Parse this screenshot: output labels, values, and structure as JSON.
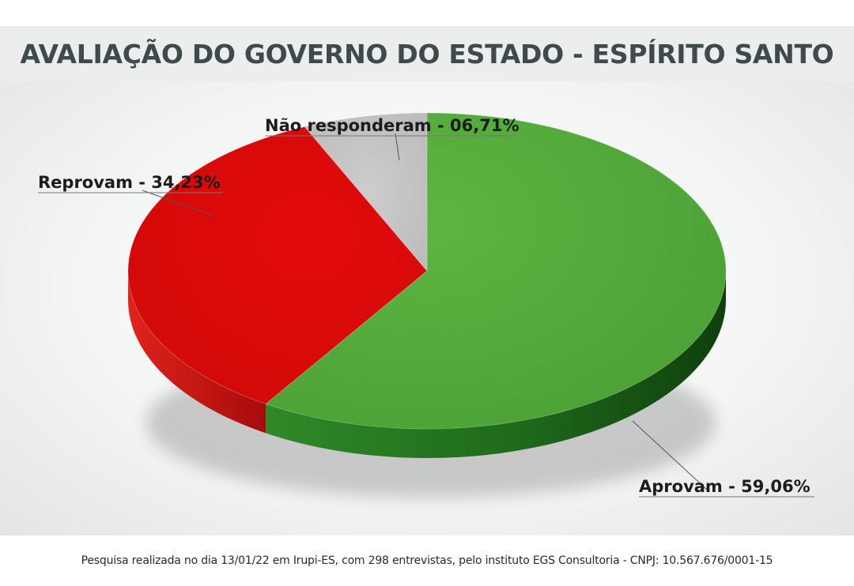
{
  "chart_data": {
    "type": "pie",
    "title": "AVALIAÇÃO DO GOVERNO DO ESTADO - ESPÍRITO SANTO",
    "slices": [
      {
        "label": "Aprovam",
        "value": 59.06,
        "value_text": "59,06%",
        "color": "#53a83a"
      },
      {
        "label": "Reprovam",
        "value": 34.23,
        "value_text": "34,23%",
        "color": "#dd0a0a"
      },
      {
        "label": "Não responderam",
        "value": 6.71,
        "value_text": "06,71%",
        "color": "#c4c4c4"
      }
    ]
  },
  "footer": {
    "note": "Pesquisa realizada no dia 13/01/22 em Irupi-ES, com 298 entrevistas, pelo instituto EGS Consultoria - CNPJ: 10.567.676/0001-15"
  }
}
